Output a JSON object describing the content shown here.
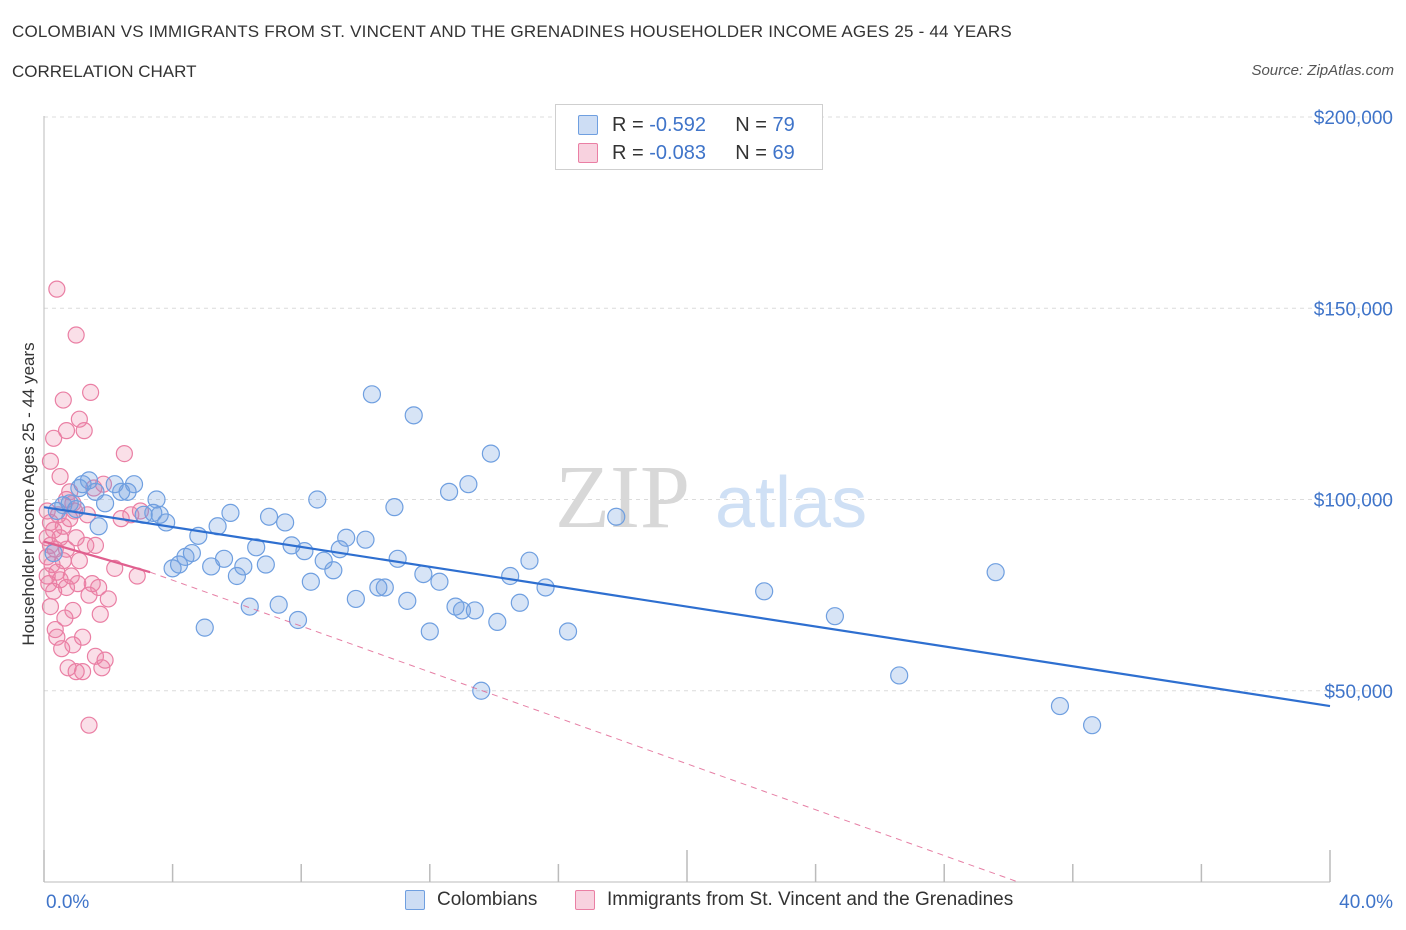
{
  "title": "COLOMBIAN VS IMMIGRANTS FROM ST. VINCENT AND THE GRENADINES HOUSEHOLDER INCOME AGES 25 - 44 YEARS",
  "subtitle": "CORRELATION CHART",
  "source": "Source: ZipAtlas.com",
  "watermark": {
    "zip": "ZIP",
    "atlas": "atlas"
  },
  "legend_box": {
    "r_label": "R =",
    "n_label": "N =",
    "rows": [
      {
        "r": "-0.592",
        "n": "79"
      },
      {
        "r": "-0.083",
        "n": "69"
      }
    ]
  },
  "bottom_legend": [
    "Colombians",
    "Immigrants from St. Vincent and the Grenadines"
  ],
  "colors": {
    "blue": "#6f9fe0",
    "blue_fill": "rgba(111,159,224,0.28)",
    "blue_line": "#2e6fd0",
    "pink": "#ea7fa4",
    "pink_fill": "rgba(234,127,164,0.25)",
    "pink_line": "#e0608f",
    "axis_text": "#3f74c9",
    "grid": "#dcdcdc"
  },
  "chart_data": {
    "type": "scatter",
    "title": "COLOMBIAN VS IMMIGRANTS FROM ST. VINCENT AND THE GRENADINES HOUSEHOLDER INCOME AGES 25 - 44 YEARS",
    "xlabel": "",
    "ylabel": "Householder Income Ages 25 - 44 years",
    "x_tick_labels": [
      "0.0%",
      "40.0%"
    ],
    "y_tick_labels": [
      "$200,000",
      "$150,000",
      "$100,000",
      "$50,000"
    ],
    "y_ticks": [
      200000,
      150000,
      100000,
      50000
    ],
    "xlim": [
      0,
      40
    ],
    "ylim": [
      0,
      205000
    ],
    "grid": true,
    "legend_placement": "bottom",
    "series": [
      {
        "name": "Colombians",
        "color": "#6f9fe0",
        "r": -0.592,
        "n": 79,
        "trend": {
          "x": [
            0,
            40
          ],
          "y": [
            98000,
            46000
          ],
          "style": "solid"
        },
        "points": [
          [
            0.4,
            97000
          ],
          [
            0.6,
            98500
          ],
          [
            0.8,
            99000
          ],
          [
            1.0,
            97500
          ],
          [
            1.2,
            104000
          ],
          [
            1.4,
            105000
          ],
          [
            1.6,
            102000
          ],
          [
            1.7,
            93000
          ],
          [
            1.9,
            99000
          ],
          [
            2.2,
            104000
          ],
          [
            2.4,
            102000
          ],
          [
            2.6,
            102000
          ],
          [
            2.8,
            104000
          ],
          [
            3.1,
            96000
          ],
          [
            3.4,
            96500
          ],
          [
            3.5,
            100000
          ],
          [
            3.6,
            96000
          ],
          [
            3.8,
            94000
          ],
          [
            4.0,
            82000
          ],
          [
            4.2,
            83000
          ],
          [
            4.4,
            85000
          ],
          [
            4.6,
            86000
          ],
          [
            4.8,
            90500
          ],
          [
            5.0,
            66500
          ],
          [
            5.2,
            82500
          ],
          [
            5.4,
            93000
          ],
          [
            5.6,
            84500
          ],
          [
            5.8,
            96500
          ],
          [
            6.0,
            80000
          ],
          [
            6.2,
            82500
          ],
          [
            6.4,
            72000
          ],
          [
            6.6,
            87500
          ],
          [
            6.9,
            83000
          ],
          [
            7.0,
            95500
          ],
          [
            7.3,
            72500
          ],
          [
            7.5,
            94000
          ],
          [
            7.7,
            88000
          ],
          [
            7.9,
            68500
          ],
          [
            8.1,
            86500
          ],
          [
            8.3,
            78500
          ],
          [
            8.5,
            100000
          ],
          [
            8.7,
            84000
          ],
          [
            9.0,
            81500
          ],
          [
            9.2,
            87000
          ],
          [
            9.4,
            90000
          ],
          [
            9.7,
            74000
          ],
          [
            10.0,
            89500
          ],
          [
            10.2,
            127500
          ],
          [
            10.4,
            77000
          ],
          [
            10.6,
            77000
          ],
          [
            10.9,
            98000
          ],
          [
            11.0,
            84500
          ],
          [
            11.3,
            73500
          ],
          [
            11.5,
            122000
          ],
          [
            11.8,
            80500
          ],
          [
            12.0,
            65500
          ],
          [
            12.3,
            78500
          ],
          [
            12.6,
            102000
          ],
          [
            12.8,
            72000
          ],
          [
            13.0,
            71000
          ],
          [
            13.2,
            104000
          ],
          [
            13.4,
            71000
          ],
          [
            13.6,
            50000
          ],
          [
            13.9,
            112000
          ],
          [
            14.1,
            68000
          ],
          [
            14.5,
            80000
          ],
          [
            14.8,
            73000
          ],
          [
            15.1,
            84000
          ],
          [
            15.6,
            77000
          ],
          [
            16.3,
            65500
          ],
          [
            17.8,
            95500
          ],
          [
            22.4,
            76000
          ],
          [
            24.6,
            69500
          ],
          [
            26.6,
            54000
          ],
          [
            29.6,
            81000
          ],
          [
            31.6,
            46000
          ],
          [
            32.6,
            41000
          ],
          [
            0.3,
            86000
          ],
          [
            1.1,
            103000
          ]
        ]
      },
      {
        "name": "Immigrants from St. Vincent and the Grenadines",
        "color": "#ea7fa4",
        "r": -0.083,
        "n": 69,
        "trend": {
          "x": [
            0,
            3.3
          ],
          "y": [
            89000,
            81000
          ],
          "style": "solid",
          "extension": {
            "x": [
              3.3,
              30.3
            ],
            "y": [
              81000,
              0
            ],
            "style": "dashed"
          }
        },
        "points": [
          [
            0.1,
            97000
          ],
          [
            0.1,
            90000
          ],
          [
            0.1,
            85000
          ],
          [
            0.1,
            80000
          ],
          [
            0.15,
            78000
          ],
          [
            0.2,
            110000
          ],
          [
            0.2,
            94000
          ],
          [
            0.2,
            88000
          ],
          [
            0.25,
            83000
          ],
          [
            0.3,
            76000
          ],
          [
            0.3,
            116000
          ],
          [
            0.3,
            92000
          ],
          [
            0.35,
            87000
          ],
          [
            0.4,
            81000
          ],
          [
            0.4,
            155000
          ],
          [
            0.4,
            64000
          ],
          [
            0.45,
            96000
          ],
          [
            0.5,
            106000
          ],
          [
            0.5,
            90000
          ],
          [
            0.5,
            79000
          ],
          [
            0.55,
            61000
          ],
          [
            0.6,
            126000
          ],
          [
            0.6,
            93000
          ],
          [
            0.6,
            84000
          ],
          [
            0.65,
            69000
          ],
          [
            0.7,
            118000
          ],
          [
            0.7,
            100000
          ],
          [
            0.7,
            87000
          ],
          [
            0.7,
            77000
          ],
          [
            0.75,
            56000
          ],
          [
            0.8,
            102000
          ],
          [
            0.8,
            95000
          ],
          [
            0.85,
            80000
          ],
          [
            0.9,
            71000
          ],
          [
            0.9,
            62000
          ],
          [
            0.95,
            97000
          ],
          [
            1.0,
            143000
          ],
          [
            1.0,
            90000
          ],
          [
            1.0,
            55000
          ],
          [
            1.05,
            78000
          ],
          [
            1.1,
            121000
          ],
          [
            1.1,
            84000
          ],
          [
            1.2,
            64000
          ],
          [
            1.2,
            55000
          ],
          [
            1.25,
            118000
          ],
          [
            1.3,
            88000
          ],
          [
            1.35,
            96000
          ],
          [
            1.4,
            75000
          ],
          [
            1.4,
            41000
          ],
          [
            1.45,
            128000
          ],
          [
            1.5,
            78000
          ],
          [
            1.55,
            103000
          ],
          [
            1.6,
            59000
          ],
          [
            1.7,
            77000
          ],
          [
            1.75,
            70000
          ],
          [
            1.8,
            56000
          ],
          [
            1.85,
            104000
          ],
          [
            1.9,
            58000
          ],
          [
            2.0,
            74000
          ],
          [
            2.4,
            95000
          ],
          [
            2.5,
            112000
          ],
          [
            2.7,
            96000
          ],
          [
            2.9,
            80000
          ],
          [
            3.0,
            97000
          ],
          [
            0.2,
            72000
          ],
          [
            0.9,
            99000
          ],
          [
            1.6,
            88000
          ],
          [
            0.35,
            66000
          ],
          [
            2.2,
            82000
          ]
        ]
      }
    ]
  }
}
